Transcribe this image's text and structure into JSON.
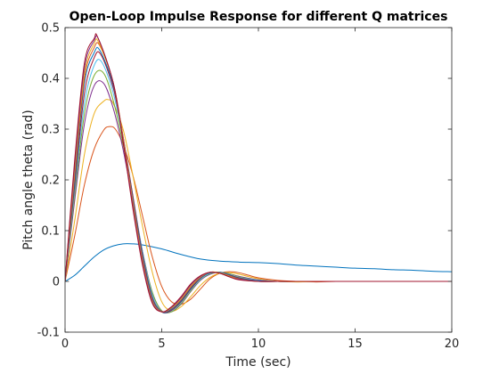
{
  "chart_data": {
    "type": "line",
    "title": "Open-Loop Impulse Response for different Q matrices",
    "xlabel": "Time (sec)",
    "ylabel": "Pitch angle theta (rad)",
    "xlim": [
      0,
      20
    ],
    "ylim": [
      -0.1,
      0.5
    ],
    "xticks": [
      0,
      5,
      10,
      15,
      20
    ],
    "yticks": [
      -0.1,
      0,
      0.1,
      0.2,
      0.3,
      0.4,
      0.5
    ],
    "xtick_labels": [
      "0",
      "5",
      "10",
      "15",
      "20"
    ],
    "ytick_labels": [
      "-0.1",
      "0",
      "0.1",
      "0.2",
      "0.3",
      "0.4",
      "0.5"
    ],
    "grid": false,
    "legend": false,
    "series": [
      {
        "color": "#0072BD",
        "x": [
          0,
          0.5,
          1,
          1.5,
          2,
          2.5,
          3,
          3.5,
          4,
          5,
          6,
          7,
          8,
          9,
          10,
          11,
          12,
          13,
          14,
          15,
          16,
          17,
          18,
          19,
          20
        ],
        "y": [
          0,
          0.012,
          0.03,
          0.048,
          0.062,
          0.07,
          0.074,
          0.074,
          0.072,
          0.064,
          0.053,
          0.044,
          0.04,
          0.038,
          0.037,
          0.035,
          0.032,
          0.03,
          0.028,
          0.026,
          0.025,
          0.023,
          0.022,
          0.02,
          0.019
        ]
      },
      {
        "color": "#D95319",
        "x": [
          0,
          0.5,
          1,
          1.5,
          2,
          2.3,
          2.6,
          3,
          3.5,
          4,
          4.5,
          5,
          5.5,
          6,
          6.5,
          7,
          7.5,
          8,
          8.5,
          9,
          9.5,
          10,
          11,
          12,
          13,
          14,
          15,
          20
        ],
        "y": [
          0,
          0.09,
          0.19,
          0.26,
          0.298,
          0.305,
          0.3,
          0.27,
          0.21,
          0.13,
          0.05,
          -0.01,
          -0.04,
          -0.045,
          -0.035,
          -0.015,
          0.005,
          0.016,
          0.019,
          0.017,
          0.012,
          0.007,
          0.002,
          0,
          -0.001,
          0,
          0,
          0
        ]
      },
      {
        "color": "#EDB120",
        "x": [
          0,
          0.5,
          1,
          1.5,
          2,
          2.25,
          2.5,
          3,
          3.5,
          4,
          4.5,
          5,
          5.5,
          6,
          6.5,
          7,
          7.5,
          8,
          8.5,
          9,
          10,
          11,
          12,
          13,
          15,
          20
        ],
        "y": [
          0,
          0.12,
          0.25,
          0.33,
          0.355,
          0.358,
          0.35,
          0.3,
          0.21,
          0.11,
          0.02,
          -0.04,
          -0.058,
          -0.05,
          -0.03,
          -0.008,
          0.008,
          0.016,
          0.017,
          0.014,
          0.005,
          0,
          -0.001,
          0,
          0,
          0
        ]
      },
      {
        "color": "#7E2F8E",
        "x": [
          0,
          0.5,
          1,
          1.5,
          2,
          2.5,
          3,
          3.5,
          4,
          4.5,
          5,
          5.5,
          6,
          6.5,
          7,
          7.5,
          8,
          8.5,
          9,
          10,
          11,
          12,
          14,
          20
        ],
        "y": [
          0,
          0.16,
          0.31,
          0.385,
          0.39,
          0.34,
          0.26,
          0.16,
          0.06,
          -0.02,
          -0.058,
          -0.06,
          -0.045,
          -0.02,
          0.002,
          0.014,
          0.018,
          0.015,
          0.01,
          0.003,
          0,
          0,
          0,
          0
        ]
      },
      {
        "color": "#77AC30",
        "x": [
          0,
          0.5,
          1,
          1.5,
          2,
          2.5,
          3,
          3.5,
          4,
          4.5,
          5,
          5.5,
          6,
          6.5,
          7,
          7.5,
          8,
          8.5,
          9,
          10,
          11,
          12,
          14,
          20
        ],
        "y": [
          0,
          0.17,
          0.33,
          0.405,
          0.41,
          0.355,
          0.27,
          0.165,
          0.06,
          -0.02,
          -0.058,
          -0.06,
          -0.044,
          -0.019,
          0.003,
          0.015,
          0.018,
          0.015,
          0.009,
          0.002,
          0,
          0,
          0,
          0
        ]
      },
      {
        "color": "#4DBEEE",
        "x": [
          0,
          0.5,
          1,
          1.5,
          1.9,
          2.5,
          3,
          3.5,
          4,
          4.5,
          5,
          5.5,
          6,
          6.5,
          7,
          7.5,
          8,
          8.5,
          9,
          10,
          11,
          12,
          14,
          20
        ],
        "y": [
          0,
          0.18,
          0.35,
          0.425,
          0.432,
          0.37,
          0.28,
          0.17,
          0.06,
          -0.025,
          -0.06,
          -0.058,
          -0.042,
          -0.017,
          0.004,
          0.016,
          0.018,
          0.014,
          0.008,
          0.002,
          0,
          0,
          0,
          0
        ]
      },
      {
        "color": "#A2142F",
        "x": [
          0,
          0.5,
          1,
          1.5,
          1.85,
          2.5,
          3,
          3.5,
          4,
          4.5,
          5,
          5.5,
          6,
          6.5,
          7,
          7.5,
          8,
          8.5,
          9,
          10,
          11,
          12,
          14,
          20
        ],
        "y": [
          0,
          0.19,
          0.37,
          0.44,
          0.447,
          0.38,
          0.285,
          0.17,
          0.055,
          -0.03,
          -0.06,
          -0.057,
          -0.04,
          -0.015,
          0.006,
          0.017,
          0.018,
          0.013,
          0.007,
          0.001,
          0,
          0,
          0,
          0
        ]
      },
      {
        "color": "#0072BD",
        "x": [
          0,
          0.5,
          1,
          1.5,
          1.8,
          2.5,
          3,
          3.5,
          4,
          4.5,
          5,
          5.5,
          6,
          6.5,
          7,
          7.5,
          8,
          8.5,
          9,
          10,
          11,
          12,
          14,
          20
        ],
        "y": [
          0,
          0.2,
          0.39,
          0.45,
          0.455,
          0.385,
          0.285,
          0.165,
          0.05,
          -0.033,
          -0.06,
          -0.055,
          -0.038,
          -0.013,
          0.007,
          0.017,
          0.018,
          0.012,
          0.006,
          0.001,
          0,
          0,
          0,
          0
        ]
      },
      {
        "color": "#D95319",
        "x": [
          0,
          0.5,
          1,
          1.5,
          1.8,
          2.5,
          3,
          3.5,
          4,
          4.5,
          5,
          5.5,
          6,
          6.5,
          7,
          7.5,
          8,
          8.5,
          9,
          10,
          11,
          12,
          14,
          20
        ],
        "y": [
          0,
          0.21,
          0.4,
          0.46,
          0.464,
          0.39,
          0.285,
          0.16,
          0.045,
          -0.036,
          -0.06,
          -0.053,
          -0.036,
          -0.011,
          0.008,
          0.018,
          0.017,
          0.011,
          0.005,
          0,
          0,
          0,
          0,
          0
        ]
      },
      {
        "color": "#EDB120",
        "x": [
          0,
          0.5,
          1,
          1.5,
          1.75,
          2.5,
          3,
          3.5,
          4,
          4.5,
          5,
          5.5,
          6,
          6.5,
          7,
          7.5,
          8,
          8.5,
          9,
          10,
          11,
          12,
          14,
          20
        ],
        "y": [
          0,
          0.22,
          0.41,
          0.468,
          0.47,
          0.39,
          0.28,
          0.155,
          0.04,
          -0.038,
          -0.06,
          -0.052,
          -0.034,
          -0.009,
          0.009,
          0.018,
          0.017,
          0.01,
          0.004,
          0,
          0,
          0,
          0,
          0
        ]
      },
      {
        "color": "#7E2F8E",
        "x": [
          0,
          0.5,
          1,
          1.5,
          1.75,
          2.5,
          3,
          3.5,
          4,
          4.5,
          5,
          5.5,
          6,
          6.5,
          7,
          7.5,
          8,
          8.5,
          9,
          10,
          11,
          12,
          14,
          20
        ],
        "y": [
          0,
          0.23,
          0.42,
          0.474,
          0.476,
          0.39,
          0.278,
          0.15,
          0.037,
          -0.04,
          -0.06,
          -0.051,
          -0.032,
          -0.007,
          0.01,
          0.018,
          0.016,
          0.009,
          0.004,
          0,
          0,
          0,
          0,
          0
        ]
      },
      {
        "color": "#A2142F",
        "x": [
          0,
          0.5,
          1,
          1.5,
          1.7,
          2.5,
          3,
          3.5,
          4,
          4.5,
          5,
          5.5,
          6,
          6.5,
          7,
          7.5,
          8,
          8.5,
          9,
          10,
          11,
          12,
          14,
          20
        ],
        "y": [
          0,
          0.24,
          0.43,
          0.478,
          0.48,
          0.39,
          0.275,
          0.145,
          0.033,
          -0.042,
          -0.06,
          -0.05,
          -0.03,
          -0.005,
          0.011,
          0.018,
          0.016,
          0.009,
          0.003,
          0,
          0,
          0,
          0,
          0
        ]
      }
    ]
  }
}
